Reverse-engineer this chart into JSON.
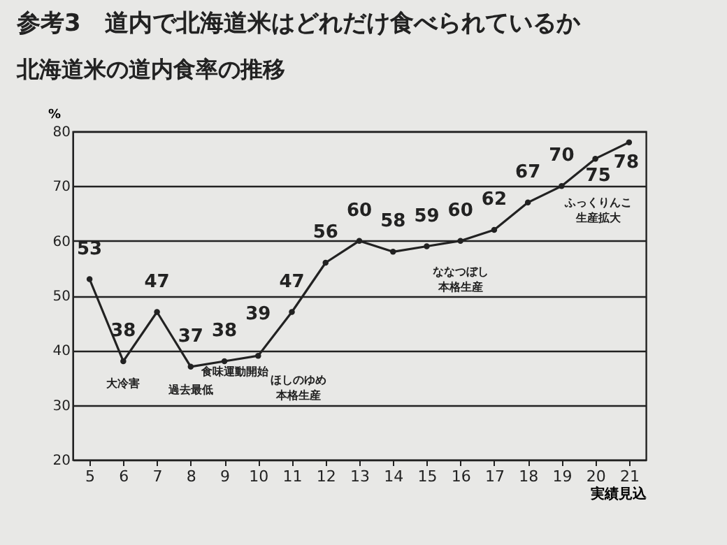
{
  "chart_data": {
    "type": "line",
    "title": "参考3　道内で北海道米はどれだけ食べられているか",
    "subtitle": "北海道米の道内食率の推移",
    "ylabel": "%",
    "xlabel": "実績見込",
    "categories": [
      "5",
      "6",
      "7",
      "8",
      "9",
      "10",
      "11",
      "12",
      "13",
      "14",
      "15",
      "16",
      "17",
      "18",
      "19",
      "20",
      "21"
    ],
    "series": [
      {
        "color": "#222222",
        "values": [
          53,
          38,
          47,
          37,
          38,
          39,
          47,
          56,
          60,
          58,
          59,
          60,
          62,
          67,
          70,
          75,
          78
        ]
      }
    ],
    "ylim": [
      20,
      80
    ],
    "yticks": [
      20,
      30,
      40,
      50,
      60,
      70,
      80
    ],
    "grid": "y",
    "legend": false,
    "marker": "circle",
    "line_style": "solid",
    "data_labels": true,
    "annotations": [
      "大冷害",
      "過去最低",
      "食味運動開始",
      "ほしのゆめ本格生産",
      "ななつぼし本格生産",
      "ふっくりんこ生産拡大"
    ]
  }
}
